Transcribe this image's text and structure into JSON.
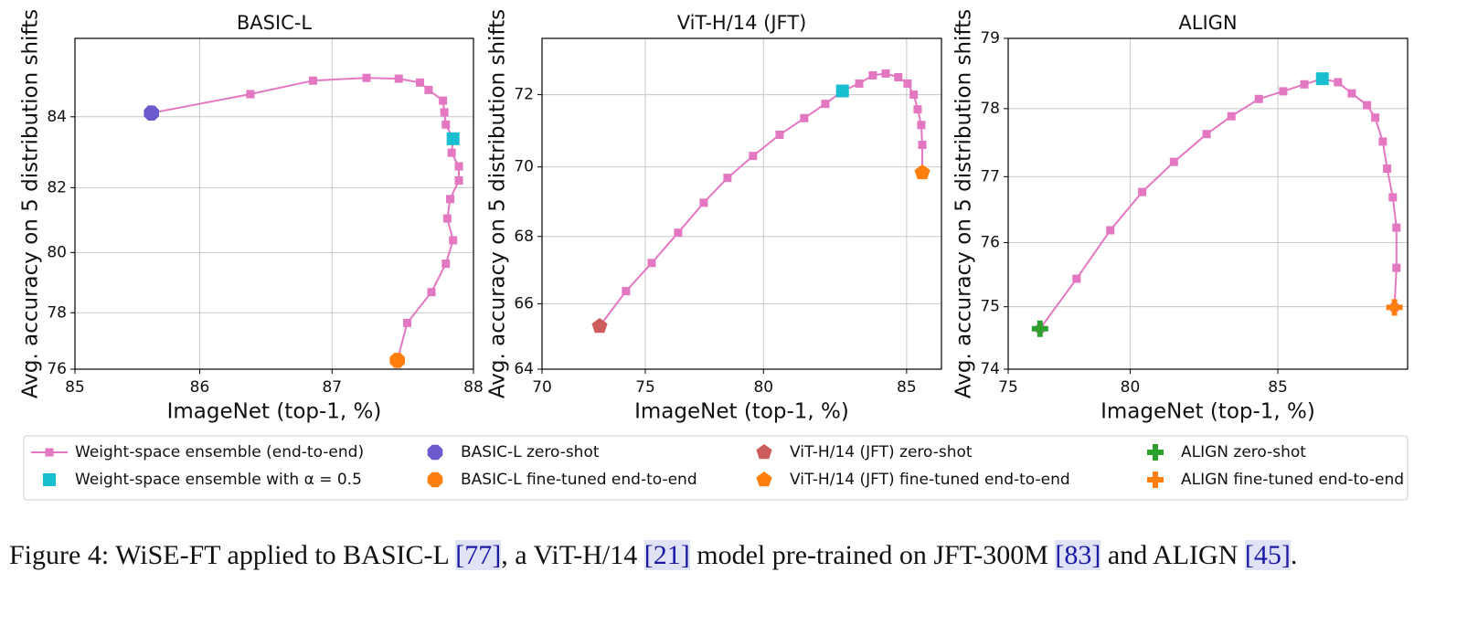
{
  "chart_data": [
    {
      "type": "line",
      "title": "BASIC-L",
      "x_label": "ImageNet (top-1, %)",
      "y_label": "Avg. accuracy on 5 distribution shifts",
      "xscale": "logit",
      "yscale": "logit",
      "grid": true,
      "xlim": [
        85,
        88
      ],
      "ylim": [
        76,
        86
      ],
      "xticks": [
        85,
        86,
        87,
        88
      ],
      "yticks": [
        76,
        78,
        80,
        82,
        84
      ],
      "series": [
        {
          "name": "Weight-space ensemble (end-to-end)",
          "color": "#e377c2",
          "marker": "square",
          "line": true,
          "x": [
            85.62,
            86.39,
            86.86,
            87.25,
            87.48,
            87.63,
            87.69,
            87.79,
            87.8,
            87.81,
            87.86,
            87.85,
            87.9,
            87.9,
            87.84,
            87.82,
            87.86,
            87.81,
            87.71,
            87.54,
            87.47
          ],
          "values": [
            84.1,
            84.6,
            84.95,
            85.02,
            85.0,
            84.9,
            84.71,
            84.43,
            84.12,
            83.79,
            83.4,
            83.01,
            82.62,
            82.21,
            81.66,
            81.07,
            80.39,
            79.64,
            78.7,
            77.65,
            76.32
          ]
        },
        {
          "name": "Weight-space ensemble with α = 0.5",
          "color": "#17becf",
          "marker": "square",
          "x": [
            87.86
          ],
          "values": [
            83.4
          ]
        },
        {
          "name": "BASIC-L zero-shot",
          "color": "#6a5acd",
          "marker": "octagon",
          "x": [
            85.62
          ],
          "values": [
            84.1
          ]
        },
        {
          "name": "BASIC-L fine-tuned end-to-end",
          "color": "#ff7f0e",
          "marker": "octagon",
          "x": [
            87.47
          ],
          "values": [
            76.32
          ]
        }
      ]
    },
    {
      "type": "line",
      "title": "ViT-H/14 (JFT)",
      "x_label": "ImageNet (top-1, %)",
      "y_label": "Avg. accuracy on 5 distribution shifts",
      "xscale": "logit",
      "yscale": "logit",
      "grid": true,
      "xlim": [
        70,
        86.05
      ],
      "ylim": [
        64,
        73.5
      ],
      "xticks": [
        70,
        75,
        80,
        85
      ],
      "yticks": [
        64,
        66,
        68,
        70,
        72
      ],
      "series": [
        {
          "name": "Weight-space ensemble (end-to-end)",
          "color": "#e377c2",
          "marker": "square",
          "line": true,
          "x": [
            72.86,
            74.11,
            75.29,
            76.47,
            77.57,
            78.56,
            79.59,
            80.62,
            81.54,
            82.3,
            82.9,
            83.47,
            83.92,
            84.34,
            84.74,
            85.03,
            85.22,
            85.34,
            85.45,
            85.48,
            85.48
          ],
          "values": [
            65.32,
            66.38,
            67.22,
            68.11,
            68.98,
            69.69,
            70.31,
            70.9,
            71.36,
            71.75,
            72.1,
            72.3,
            72.52,
            72.57,
            72.47,
            72.3,
            72.0,
            71.6,
            71.17,
            70.62,
            69.84
          ]
        },
        {
          "name": "Weight-space ensemble with α = 0.5",
          "color": "#17becf",
          "marker": "square",
          "x": [
            82.9
          ],
          "values": [
            72.1
          ]
        },
        {
          "name": "ViT-H/14 (JFT) zero-shot",
          "color": "#cd5c5c",
          "marker": "pentagon",
          "x": [
            72.86
          ],
          "values": [
            65.32
          ]
        },
        {
          "name": "ViT-H/14 (JFT) fine-tuned end-to-end",
          "color": "#ff7f0e",
          "marker": "pentagon",
          "x": [
            85.48
          ],
          "values": [
            69.84
          ]
        }
      ]
    },
    {
      "type": "line",
      "title": "ALIGN",
      "x_label": "ImageNet (top-1, %)",
      "y_label": "Avg. accuracy on 5 distribution shifts",
      "xscale": "logit",
      "yscale": "logit",
      "grid": true,
      "xlim": [
        75,
        88.5
      ],
      "ylim": [
        74,
        79
      ],
      "xticks": [
        75,
        80,
        85
      ],
      "yticks": [
        74,
        75,
        76,
        77,
        78,
        79
      ],
      "series": [
        {
          "name": "Weight-space ensemble (end-to-end)",
          "color": "#e377c2",
          "marker": "square",
          "line": true,
          "x": [
            76.38,
            77.9,
            79.24,
            80.45,
            81.6,
            82.73,
            83.55,
            84.42,
            85.16,
            85.78,
            86.29,
            86.72,
            87.09,
            87.49,
            87.7,
            87.89,
            88.0,
            88.14,
            88.23,
            88.23,
            88.18
          ],
          "values": [
            74.65,
            75.44,
            76.19,
            76.77,
            77.22,
            77.63,
            77.89,
            78.14,
            78.25,
            78.35,
            78.43,
            78.38,
            78.22,
            78.05,
            77.87,
            77.52,
            77.12,
            76.69,
            76.23,
            75.61,
            74.99
          ]
        },
        {
          "name": "Weight-space ensemble with α = 0.5",
          "color": "#17becf",
          "marker": "square",
          "x": [
            86.29
          ],
          "values": [
            78.43
          ]
        },
        {
          "name": "ALIGN zero-shot",
          "color": "#2ca02c",
          "marker": "plus",
          "x": [
            76.38
          ],
          "values": [
            74.65
          ]
        },
        {
          "name": "ALIGN fine-tuned end-to-end",
          "color": "#ff7f0e",
          "marker": "plus",
          "x": [
            88.18
          ],
          "values": [
            74.99
          ]
        }
      ]
    }
  ],
  "caption": [
    "Figure 4: WiSE-FT applied to BASIC-L ",
    "[77]",
    ", a ViT-H/14 ",
    "[21]",
    " model pre-trained on JFT-300M ",
    "[83]",
    " and ALIGN ",
    "[45]",
    "."
  ]
}
